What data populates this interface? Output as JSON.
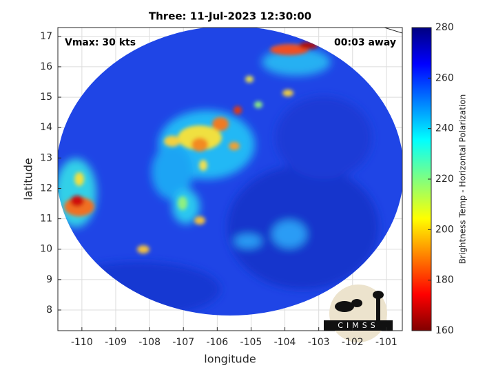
{
  "title": "Three: 11-Jul-2023 12:30:00",
  "annotations": {
    "left": "Vmax: 30 kts",
    "right": "00:03 away"
  },
  "x_label": "longitude",
  "y_label": "latitude",
  "xlim": [
    -110.71,
    -100.53
  ],
  "xticks": [
    -110,
    -109,
    -108,
    -107,
    -106,
    -105,
    -104,
    -103,
    -102,
    -101
  ],
  "ylim": [
    7.32,
    17.29
  ],
  "yticks": [
    8,
    9,
    10,
    11,
    12,
    13,
    14,
    15,
    16,
    17
  ],
  "colorbar": {
    "label": "Brightness Temp - Horizontal Polarization",
    "lim": [
      160,
      280
    ],
    "ticks": [
      160,
      180,
      200,
      220,
      240,
      260,
      280
    ]
  },
  "logo": "CIMSS"
}
